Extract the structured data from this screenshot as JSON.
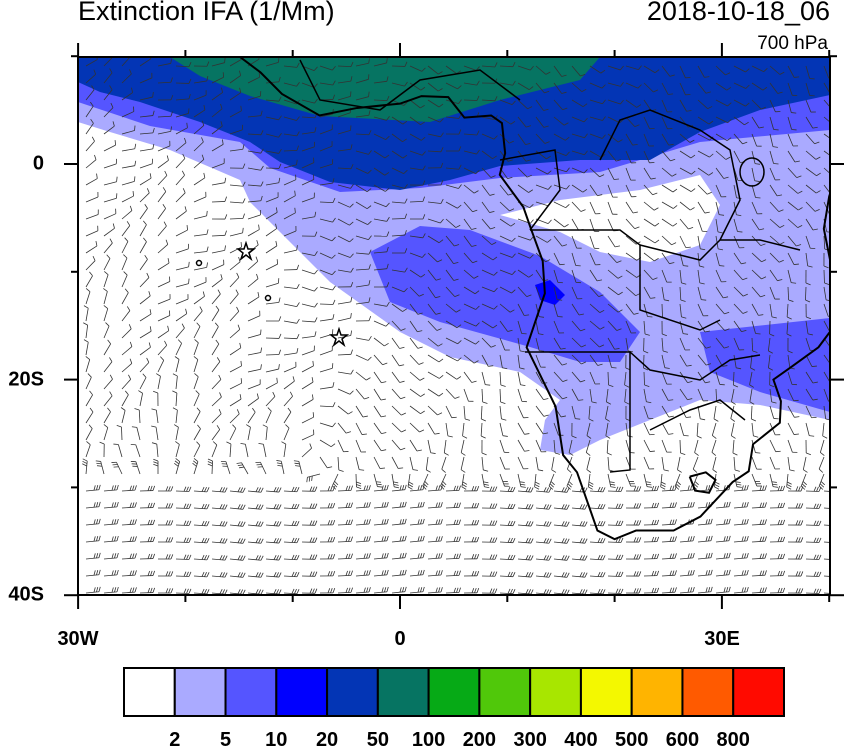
{
  "title": "Extinction IFA (1/Mm)",
  "datetime": "2018-10-18_06",
  "level": "700 hPa",
  "map": {
    "lon_range": [
      -30,
      40
    ],
    "lat_range": [
      -40,
      10
    ],
    "x_ticks": [
      "30W",
      "0",
      "30E"
    ],
    "y_ticks": [
      "0",
      "20S",
      "40S"
    ],
    "markers": [
      "star",
      "star",
      "circle",
      "circle"
    ]
  },
  "colorbar": {
    "colors": [
      "#ffffff",
      "#aaaaff",
      "#5555ff",
      "#0000ff",
      "#0335b5",
      "#067462",
      "#06aa16",
      "#50c80a",
      "#a8e600",
      "#f4f800",
      "#ffb400",
      "#ff5a00",
      "#ff0a00"
    ],
    "labels": [
      "2",
      "5",
      "10",
      "20",
      "50",
      "100",
      "200",
      "300",
      "400",
      "500",
      "600",
      "800"
    ]
  }
}
